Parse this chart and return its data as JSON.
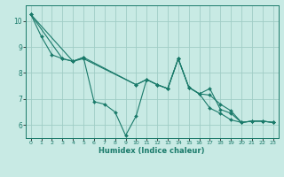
{
  "title": "",
  "xlabel": "Humidex (Indice chaleur)",
  "ylabel": "",
  "bg_color": "#c8eae4",
  "line_color": "#1a7a6a",
  "grid_color": "#a0cdc6",
  "xlim": [
    -0.5,
    23.5
  ],
  "ylim": [
    5.5,
    10.6
  ],
  "xticks": [
    0,
    1,
    2,
    3,
    4,
    5,
    6,
    7,
    8,
    9,
    10,
    11,
    12,
    13,
    14,
    15,
    16,
    17,
    18,
    19,
    20,
    21,
    22,
    23
  ],
  "yticks": [
    6,
    7,
    8,
    9,
    10
  ],
  "series": [
    {
      "x": [
        0,
        1,
        2,
        3,
        4,
        5,
        10,
        11,
        12,
        13,
        14,
        15,
        16,
        17,
        18,
        19,
        20,
        21,
        22,
        23
      ],
      "y": [
        10.25,
        9.4,
        8.7,
        8.55,
        8.45,
        8.55,
        7.55,
        7.75,
        7.55,
        7.4,
        8.55,
        7.45,
        7.2,
        7.15,
        6.8,
        6.55,
        6.1,
        6.15,
        6.15,
        6.1
      ]
    },
    {
      "x": [
        0,
        4,
        5,
        6,
        7,
        8,
        9,
        10,
        11,
        12,
        13,
        14,
        15,
        16,
        17,
        18,
        19,
        20,
        21,
        22,
        23
      ],
      "y": [
        10.25,
        8.45,
        8.6,
        6.9,
        6.8,
        6.5,
        5.6,
        6.35,
        7.75,
        7.55,
        7.4,
        8.55,
        7.45,
        7.2,
        6.65,
        6.45,
        6.2,
        6.1,
        6.15,
        6.15,
        6.1
      ]
    },
    {
      "x": [
        0,
        3,
        4,
        5,
        10,
        11,
        12,
        13,
        14,
        15,
        16,
        17,
        18,
        19,
        20,
        21,
        22,
        23
      ],
      "y": [
        10.25,
        8.55,
        8.45,
        8.6,
        7.55,
        7.75,
        7.55,
        7.4,
        8.55,
        7.45,
        7.2,
        7.4,
        6.6,
        6.45,
        6.1,
        6.15,
        6.15,
        6.1
      ]
    }
  ]
}
